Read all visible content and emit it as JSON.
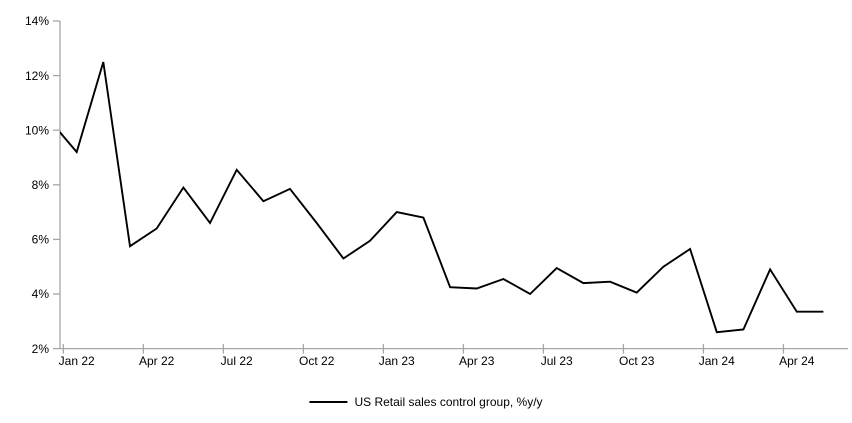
{
  "page": {
    "background": "#ffffff"
  },
  "chart_data": {
    "type": "line",
    "legend": "US Retail sales control group, %y/y",
    "legend_position": "bottom-center",
    "grid": false,
    "ylim": [
      2,
      14
    ],
    "y_ticks": [
      {
        "value": 14,
        "label": "14%"
      },
      {
        "value": 12,
        "label": "12%"
      },
      {
        "value": 10,
        "label": "10%"
      },
      {
        "value": 8,
        "label": "8%"
      },
      {
        "value": 6,
        "label": "6%"
      },
      {
        "value": 4,
        "label": "4%"
      },
      {
        "value": 2,
        "label": "2%"
      }
    ],
    "categories": [
      "Dec 21",
      "Jan 22",
      "Feb 22",
      "Mar 22",
      "Apr 22",
      "May 22",
      "Jun 22",
      "Jul 22",
      "Aug 22",
      "Sep 22",
      "Oct 22",
      "Nov 22",
      "Dec 22",
      "Jan 23",
      "Feb 23",
      "Mar 23",
      "Apr 23",
      "May 23",
      "Jun 23",
      "Jul 23",
      "Aug 23",
      "Sep 23",
      "Oct 23",
      "Nov 23",
      "Dec 23",
      "Jan 24",
      "Feb 24",
      "Mar 24",
      "Apr 24",
      "May 24"
    ],
    "series": [
      {
        "name": "US Retail sales control group, %y/y",
        "values": [
          10.35,
          9.2,
          12.5,
          5.75,
          6.4,
          7.9,
          6.6,
          8.55,
          7.4,
          7.85,
          6.6,
          5.3,
          5.95,
          7.0,
          6.8,
          4.25,
          4.2,
          4.55,
          4.0,
          4.95,
          4.4,
          4.45,
          4.05,
          5.0,
          5.65,
          2.6,
          2.7,
          4.9,
          3.35,
          3.35
        ]
      }
    ],
    "note": "First point (Dec 21) lies on/left of the y-axis and is partially clipped; line starts at the axis at ~9.9%.",
    "x_tick_labels": [
      "Jan 22",
      "Apr 22",
      "Jul 22",
      "Oct 22",
      "Jan 23",
      "Apr 23",
      "Jul 23",
      "Oct 23",
      "Jan 24",
      "Apr 24"
    ],
    "x_tick_indices": [
      1,
      4,
      7,
      10,
      13,
      16,
      19,
      22,
      25,
      28
    ],
    "colors": {
      "line": "#000000",
      "axis": "#a6a6a6",
      "text": "#000000"
    }
  }
}
